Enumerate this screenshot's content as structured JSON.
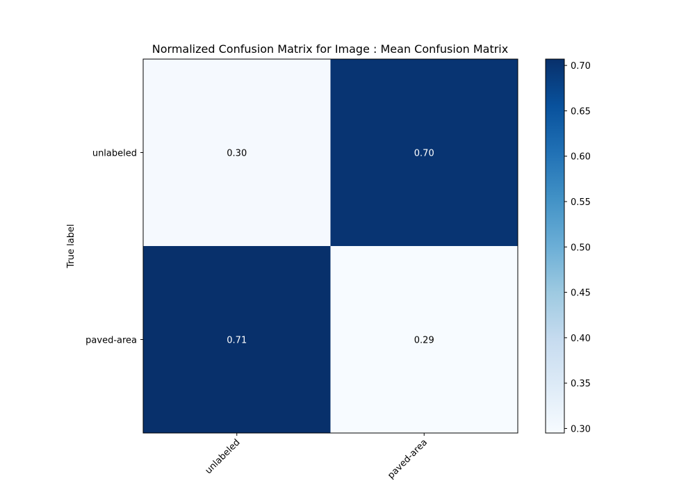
{
  "chart_data": {
    "type": "heatmap",
    "title": "Normalized Confusion Matrix for Image : Mean Confusion Matrix",
    "ylabel": "True label",
    "xlabel": "",
    "row_labels": [
      "unlabeled",
      "paved-area"
    ],
    "col_labels": [
      "unlabeled",
      "paved-area"
    ],
    "values": [
      [
        0.3,
        0.7
      ],
      [
        0.71,
        0.29
      ]
    ],
    "value_format_decimals": 2,
    "colormap": "Blues",
    "colorbar": {
      "min": 0.295,
      "max": 0.707,
      "ticks": [
        0.3,
        0.35,
        0.4,
        0.45,
        0.5,
        0.55,
        0.6,
        0.65,
        0.7
      ],
      "tick_labels": [
        "0.30",
        "0.35",
        "0.40",
        "0.45",
        "0.50",
        "0.55",
        "0.60",
        "0.65",
        "0.70"
      ]
    },
    "colors": {
      "low": "#f7fbff",
      "high": "#08306b",
      "text_on_light": "#000000",
      "text_on_dark": "#ffffff"
    },
    "grid": false
  }
}
